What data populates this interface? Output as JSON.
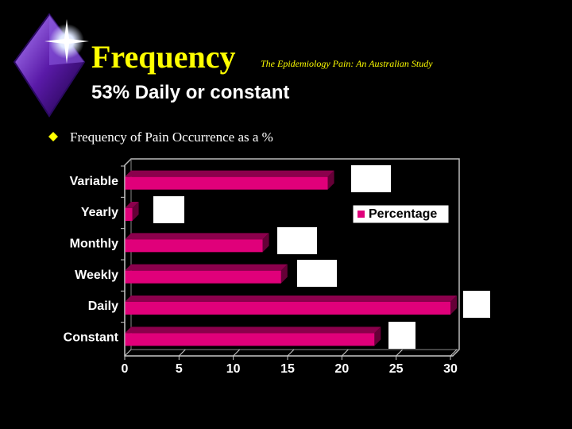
{
  "slide": {
    "title": "Frequency",
    "subtitle": "The Epidemiology Pain: An Australian Study",
    "heading": "53% Daily or constant",
    "bullet": "Frequency of Pain Occurrence as a %"
  },
  "chart_data": {
    "type": "bar",
    "orientation": "horizontal",
    "categories": [
      "Variable",
      "Yearly",
      "Monthly",
      "Weekly",
      "Daily",
      "Constant"
    ],
    "series": [
      {
        "name": "Percentage",
        "color": "#e0007a",
        "values": [
          18.7,
          0.7,
          12.7,
          14.4,
          30,
          23
        ]
      }
    ],
    "xlim": [
      0,
      30
    ],
    "xticks": [
      0,
      5,
      10,
      15,
      20,
      25,
      30
    ],
    "grid": false,
    "legend": "upper right"
  }
}
